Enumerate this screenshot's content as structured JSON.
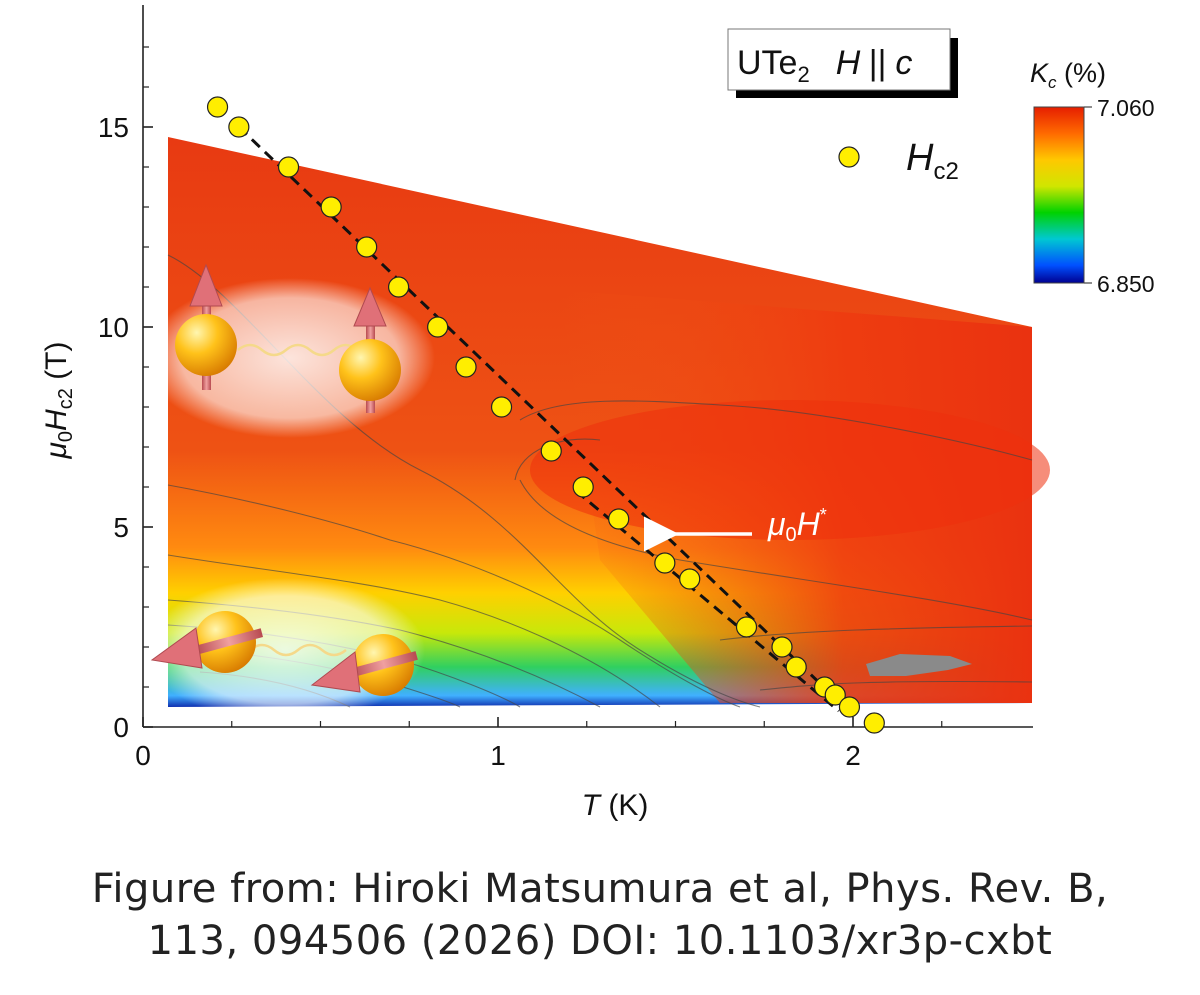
{
  "chart_data": {
    "type": "scatter",
    "title": "",
    "sample_label": "UTe",
    "sample_subscript": "2",
    "field_label": "H",
    "field_orientation": "|| c",
    "xlabel_var": "T",
    "xlabel_unit": " (K)",
    "ylabel": "μ0Hc2 (T)",
    "ylabel_mu": "μ",
    "ylabel_sub0": "0",
    "ylabel_H": "H",
    "ylabel_subc2": "c2",
    "ylabel_unit": " (T)",
    "xlim": [
      0,
      2.5
    ],
    "ylim": [
      0,
      18
    ],
    "xticks": [
      0,
      1,
      2
    ],
    "yticks": [
      0,
      5,
      10,
      15
    ],
    "xtick_labels": [
      "0",
      "1",
      "2"
    ],
    "ytick_labels": [
      "0",
      "5",
      "10",
      "15"
    ],
    "series": [
      {
        "name": "Hc2",
        "marker": "circle",
        "color": "#ffee00",
        "x": [
          0.21,
          0.27,
          0.41,
          0.53,
          0.63,
          0.72,
          0.83,
          0.91,
          1.01,
          1.15,
          1.24,
          1.34,
          1.47,
          1.54,
          1.7,
          1.8,
          1.84,
          1.92,
          1.95,
          1.99,
          2.06
        ],
        "y": [
          15.5,
          15.0,
          14.0,
          13.0,
          12.0,
          11.0,
          10.0,
          9.0,
          8.0,
          6.9,
          6.0,
          5.2,
          4.1,
          3.7,
          2.5,
          2.0,
          1.5,
          1.0,
          0.8,
          0.5,
          0.1
        ]
      }
    ],
    "fit_line": {
      "style": "dashed",
      "x": [
        0.27,
        2.0
      ],
      "y": [
        15.0,
        0.3
      ]
    },
    "hstar_line": {
      "style": "dashed",
      "x": [
        1.22,
        1.96
      ],
      "y": [
        5.9,
        0.4
      ]
    },
    "legend": {
      "label_H": "H",
      "label_sub": "c2",
      "position": "top-right"
    },
    "annotation": {
      "prefix": "μ",
      "sub": "0",
      "var": "H",
      "sup": "*",
      "arrow_to": [
        1.43,
        4.8
      ]
    },
    "colorbar": {
      "title_var": "K",
      "title_sub": "c",
      "title_unit": " (%)",
      "max_label": "7.060",
      "min_label": "6.850",
      "colors": [
        "#e61e00",
        "#ff6a00",
        "#ffc800",
        "#d0e600",
        "#00d200",
        "#00c8d2",
        "#0050ff",
        "#000090"
      ]
    },
    "colormap_region": "Kc contour map over 0.07–2.5 K, 0.5–14.8 T"
  },
  "caption": {
    "line1": "Figure from: Hiroki Matsumura et al, Phys. Rev. B,",
    "line2": "113, 094506 (2026) DOI:  10.1103/xr3p-cxbt"
  }
}
